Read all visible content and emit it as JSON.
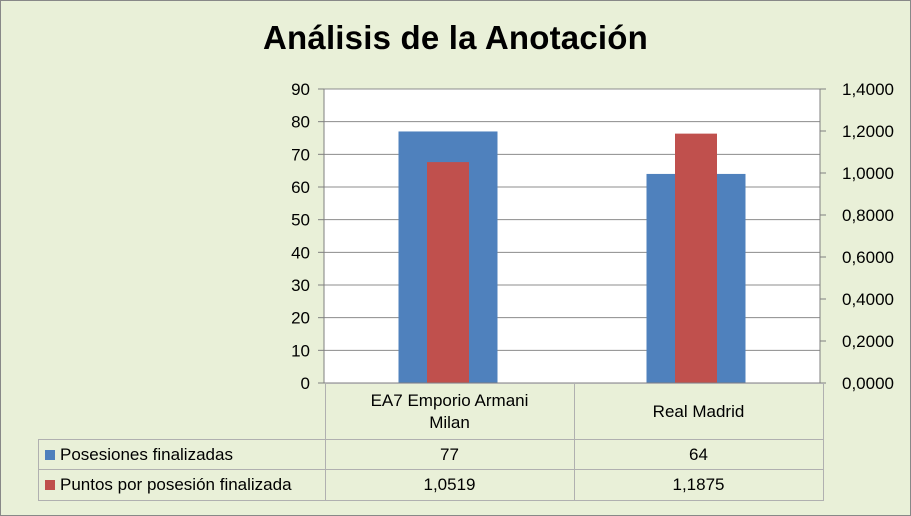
{
  "chart_data": {
    "type": "bar",
    "title": "Análisis de la Anotación",
    "categories": [
      "EA7 Emporio Armani Milan",
      "Real Madrid"
    ],
    "category_lines": [
      [
        "EA7 Emporio Armani",
        "Milan"
      ],
      [
        "Real Madrid"
      ]
    ],
    "series": [
      {
        "name": "Posesiones finalizadas",
        "values": [
          77,
          64
        ],
        "value_labels": [
          "77",
          "64"
        ],
        "axis": "primary",
        "color": "#4f81bd"
      },
      {
        "name": "Puntos por posesión finalizada",
        "values": [
          1.0519,
          1.1875
        ],
        "value_labels": [
          "1,0519",
          "1,1875"
        ],
        "axis": "secondary",
        "color": "#c0504d"
      }
    ],
    "y_primary": {
      "min": 0,
      "max": 90,
      "step": 10,
      "ticks": [
        "0",
        "10",
        "20",
        "30",
        "40",
        "50",
        "60",
        "70",
        "80",
        "90"
      ]
    },
    "y_secondary": {
      "min": 0,
      "max": 1.4,
      "step": 0.2,
      "ticks": [
        "0,0000",
        "0,2000",
        "0,4000",
        "0,6000",
        "0,8000",
        "1,0000",
        "1,2000",
        "1,4000"
      ]
    },
    "grid": true,
    "legend": "data-table"
  }
}
